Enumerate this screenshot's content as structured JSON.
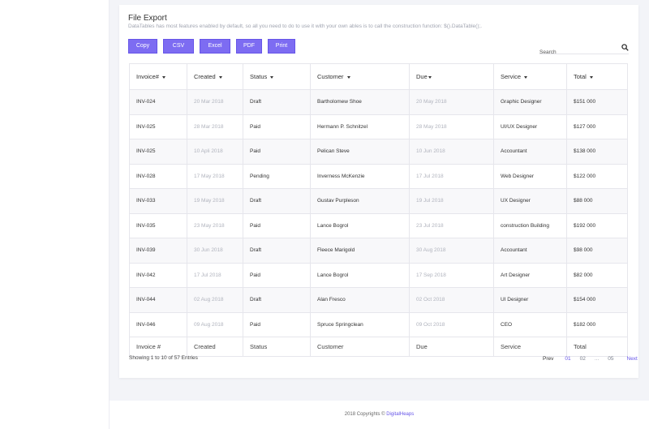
{
  "card": {
    "title": "File Export",
    "description": "DataTables has most features enabled by default, so all you need to do to use it with your own ables is to call the construction function: $().DataTable();."
  },
  "buttons": {
    "copy": "Copy",
    "csv": "CSV",
    "excel": "Excel",
    "pdf": "PDF",
    "print": "Print"
  },
  "search": {
    "placeholder": "Search",
    "icon": "search-icon"
  },
  "table": {
    "headers": [
      "Invoice#",
      "Created",
      "Status",
      "Customer",
      "Due",
      "Service",
      "Total"
    ],
    "footers": [
      "Invoice #",
      "Created",
      "Status",
      "Customer",
      "Due",
      "Service",
      "Total"
    ],
    "rows": [
      [
        "INV-024",
        "20 Mar 2018",
        "Draft",
        "Bartholomew Shoe",
        "20 May 2018",
        "Graphic Designer",
        "$151 000"
      ],
      [
        "INV-025",
        "28 Mar 2018",
        "Paid",
        "Hermann P. Schnitzel",
        "28 May 2018",
        "UI/UX Designer",
        "$127 000"
      ],
      [
        "INV-025",
        "10 Apli 2018",
        "Paid",
        "Pelican Steve",
        "10 Jun 2018",
        "Accountant",
        "$138 000"
      ],
      [
        "INV-028",
        "17 May 2018",
        "Pending",
        "Inverness McKenzie",
        "17 Jul 2018",
        "Web Designer",
        "$122 000"
      ],
      [
        "INV-033",
        "19 May 2018",
        "Draft",
        "Gustav Purpleson",
        "19 Jul 2018",
        "UX Designer",
        "$88 000"
      ],
      [
        "INV-035",
        "23 May 2018",
        "Paid",
        "Lance Bogrol",
        "23 Jul 2018",
        "construction Building",
        "$192 000"
      ],
      [
        "INV-039",
        "30 Jun 2018",
        "Draft",
        "Fleece Marigold",
        "30 Aug 2018",
        "Accountant",
        "$98 000"
      ],
      [
        "INV-042",
        "17 Jul 2018",
        "Paid",
        "Lance Bogrol",
        "17 Sep 2018",
        "Art Designer",
        "$82 000"
      ],
      [
        "INV-044",
        "02 Aug 2018",
        "Draft",
        "Alan Fresco",
        "02 Oct 2018",
        "UI Designer",
        "$154 000"
      ],
      [
        "INV-046",
        "09 Aug 2018",
        "Paid",
        "Spruce Springclean",
        "09 Oct 2018",
        "CEO",
        "$182 000"
      ]
    ]
  },
  "info": "Showing 1 to 10 of 57 Entries",
  "pagination": {
    "prev": "Prev",
    "pages": [
      "01",
      "02",
      "...",
      "05"
    ],
    "active": "01",
    "next": "Next"
  },
  "footer": {
    "text": "2018 Copyrights © ",
    "link": "DigitalHeaps"
  },
  "colors": {
    "accent": "#7d6cf2",
    "background": "#f3f4f8"
  }
}
